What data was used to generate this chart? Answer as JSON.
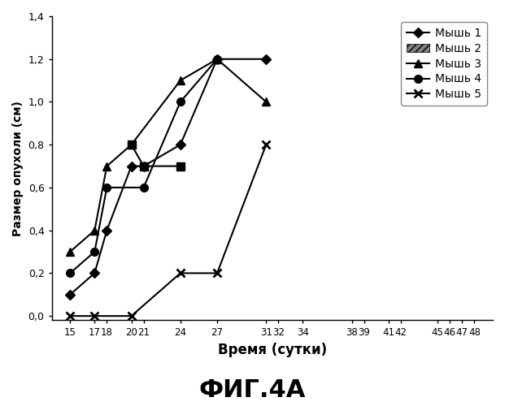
{
  "series": [
    {
      "label": "Мышь 1",
      "x": [
        15,
        17,
        18,
        20,
        21,
        24,
        27,
        31
      ],
      "y": [
        0.1,
        0.2,
        0.4,
        0.7,
        0.7,
        0.8,
        1.2,
        1.2
      ],
      "marker": "D",
      "color": "#000000",
      "linewidth": 1.5,
      "markersize": 6
    },
    {
      "label": "Мышь 2",
      "x": [
        20,
        21,
        24
      ],
      "y": [
        0.8,
        0.7,
        0.7
      ],
      "marker": "s",
      "color": "#000000",
      "linewidth": 1.5,
      "markersize": 7
    },
    {
      "label": "Мышь 3",
      "x": [
        15,
        17,
        18,
        20,
        24,
        27,
        31
      ],
      "y": [
        0.3,
        0.4,
        0.7,
        0.8,
        1.1,
        1.2,
        1.0
      ],
      "marker": "^",
      "color": "#000000",
      "linewidth": 1.5,
      "markersize": 7
    },
    {
      "label": "Мышь 4",
      "x": [
        15,
        17,
        18,
        21,
        24,
        27
      ],
      "y": [
        0.2,
        0.3,
        0.6,
        0.6,
        1.0,
        1.2
      ],
      "marker": "o",
      "color": "#000000",
      "linewidth": 1.5,
      "markersize": 7
    },
    {
      "label": "Мышь 5",
      "x": [
        15,
        17,
        20,
        24,
        27,
        31
      ],
      "y": [
        0.0,
        0.0,
        0.0,
        0.2,
        0.2,
        0.8
      ],
      "marker": "x",
      "color": "#000000",
      "linewidth": 1.5,
      "markersize": 7
    }
  ],
  "xticks": [
    15,
    17,
    18,
    20,
    21,
    24,
    27,
    31,
    32,
    34,
    38,
    39,
    41,
    42,
    45,
    46,
    47,
    48
  ],
  "yticks": [
    0,
    0.2,
    0.4,
    0.6,
    0.8,
    1.0,
    1.2,
    1.4
  ],
  "ylim": [
    -0.02,
    1.4
  ],
  "xlim": [
    13.5,
    49.5
  ],
  "xlabel": "Время (сутки)",
  "ylabel": "Размер опухоли (см)",
  "figure_title": "ФИГ.4А",
  "background_color": "#ffffff"
}
